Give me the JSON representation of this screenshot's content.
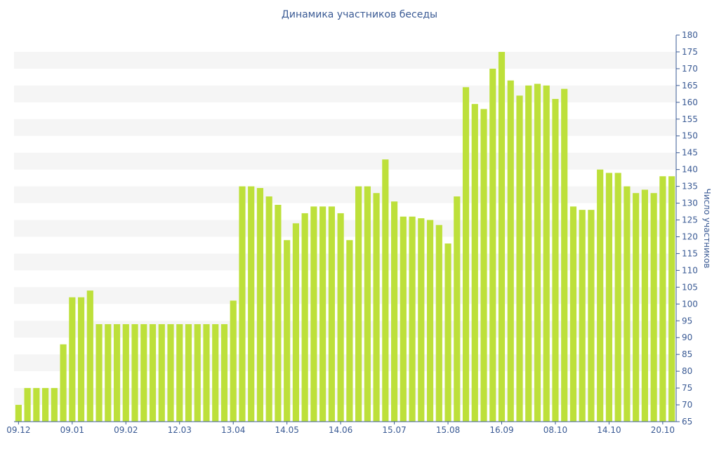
{
  "chart_data": {
    "type": "bar",
    "title": "Динамика участников беседы",
    "ylabel": "Число участников",
    "ylim": [
      65,
      180
    ],
    "ytick_step": 5,
    "x_tick_labels": [
      "09.12",
      "09.01",
      "09.02",
      "12.03",
      "13.04",
      "14.05",
      "14.06",
      "15.07",
      "15.08",
      "16.09",
      "08.10",
      "14.10",
      "20.10"
    ],
    "x_tick_bar_index": [
      0,
      6,
      12,
      18,
      24,
      30,
      36,
      42,
      48,
      54,
      60,
      66,
      72
    ],
    "values": [
      70,
      75,
      75,
      75,
      75,
      88,
      102,
      102,
      104,
      94,
      94,
      94,
      94,
      94,
      94,
      94,
      94,
      94,
      94,
      94,
      94,
      94,
      94,
      94,
      101,
      135,
      135,
      134.5,
      132,
      129.5,
      119,
      124,
      127,
      129,
      129,
      129,
      127,
      119,
      135,
      135,
      133,
      143,
      130.5,
      126,
      126,
      125.5,
      125,
      123.5,
      118,
      132,
      164.5,
      159.5,
      158,
      170,
      175,
      166.5,
      162,
      165,
      165.5,
      165,
      161,
      164,
      129,
      128,
      128,
      140,
      139,
      139,
      135,
      133,
      134,
      133,
      138,
      138
    ],
    "bar_color": "#bde03a",
    "band_color": "#f5f5f5",
    "axis_color": "#3a5a94",
    "grid": "alternating-bands",
    "y_axis_position": "right"
  }
}
